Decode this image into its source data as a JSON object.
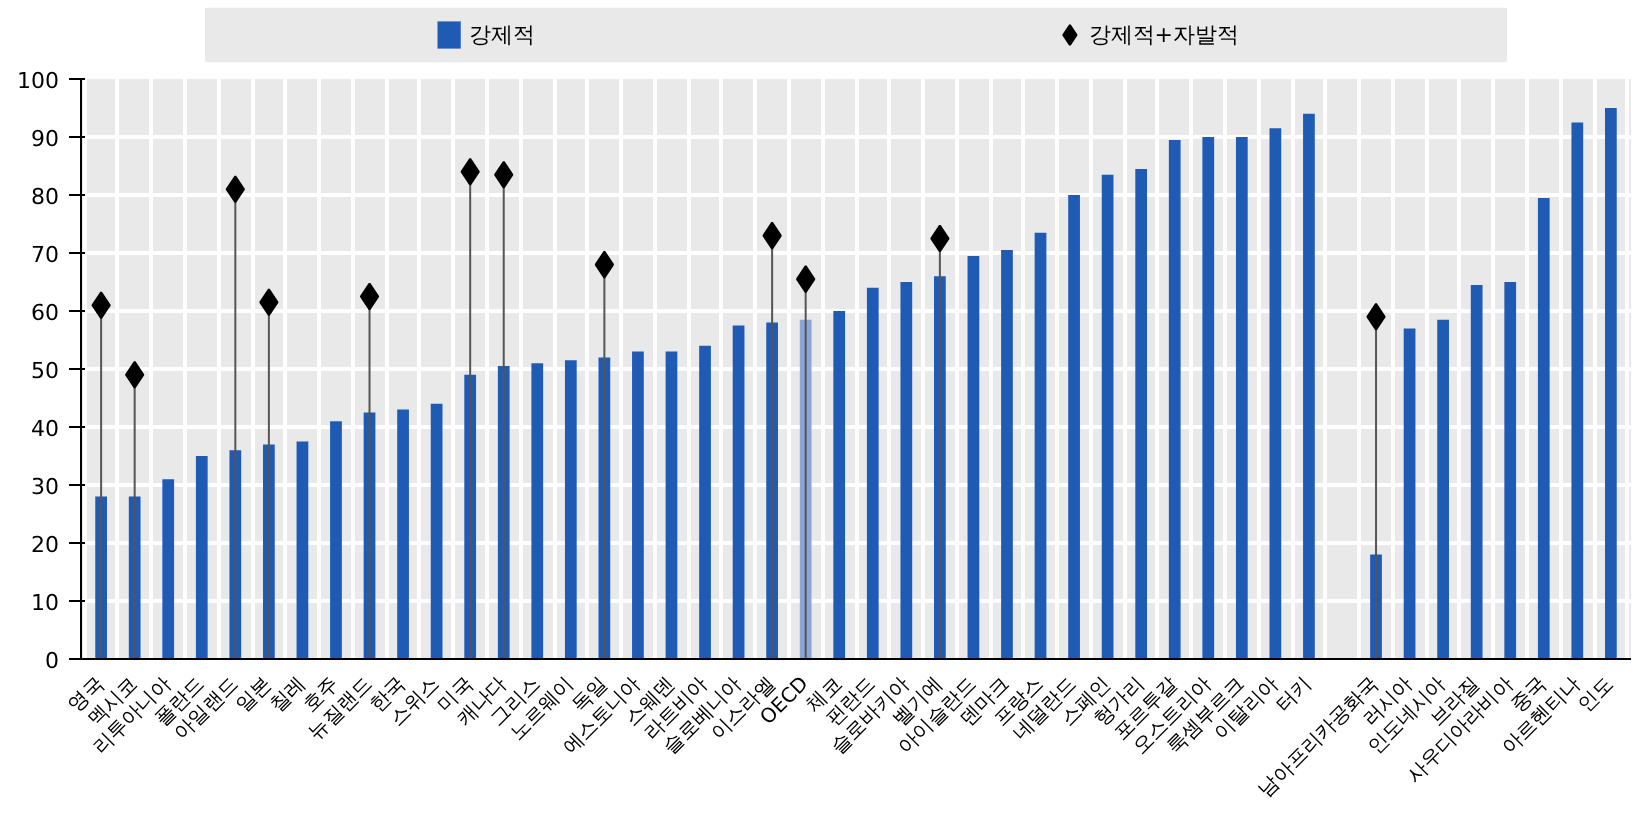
{
  "chart_data": {
    "type": "bar",
    "categories": [
      "영국",
      "멕시코",
      "리투아니아",
      "폴란드",
      "아일랜드",
      "일본",
      "칠레",
      "호주",
      "뉴질랜드",
      "한국",
      "스위스",
      "미국",
      "캐나다",
      "그리스",
      "노르웨이",
      "독일",
      "에스토니아",
      "스웨덴",
      "라트비아",
      "슬로베니아",
      "이스라엘",
      "OECD",
      "체코",
      "핀란드",
      "슬로바키아",
      "벨기에",
      "아이슬란드",
      "덴마크",
      "프랑스",
      "네덜란드",
      "스페인",
      "헝가리",
      "포르투갈",
      "오스트리아",
      "룩셈부르크",
      "이탈리아",
      "터키",
      null,
      "남아프리카공화국",
      "러시아",
      "인도네시아",
      "브라질",
      "사우디아라비아",
      "중국",
      "아르헨티나",
      "인도"
    ],
    "series": [
      {
        "name": "강제적",
        "color": "#1f5bb5",
        "colors": [
          "#1f5bb5",
          "#1f5bb5",
          "#1f5bb5",
          "#1f5bb5",
          "#1f5bb5",
          "#1f5bb5",
          "#1f5bb5",
          "#1f5bb5",
          "#1f5bb5",
          "#1f5bb5",
          "#1f5bb5",
          "#1f5bb5",
          "#1f5bb5",
          "#1f5bb5",
          "#1f5bb5",
          "#1f5bb5",
          "#1f5bb5",
          "#1f5bb5",
          "#1f5bb5",
          "#1f5bb5",
          "#1f5bb5",
          "#8aa6d6",
          "#1f5bb5",
          "#1f5bb5",
          "#1f5bb5",
          "#1f5bb5",
          "#1f5bb5",
          "#1f5bb5",
          "#1f5bb5",
          "#1f5bb5",
          "#1f5bb5",
          "#1f5bb5",
          "#1f5bb5",
          "#1f5bb5",
          "#1f5bb5",
          "#1f5bb5",
          "#1f5bb5",
          "#1f5bb5",
          "#1f5bb5",
          "#1f5bb5",
          "#1f5bb5",
          "#1f5bb5",
          "#1f5bb5",
          "#1f5bb5",
          "#1f5bb5",
          "#1f5bb5"
        ],
        "values": [
          28,
          28,
          31,
          35,
          36,
          37,
          37.5,
          41,
          42.5,
          43,
          44,
          49,
          50.5,
          51,
          51.5,
          52,
          53,
          53,
          54,
          57.5,
          58,
          58.5,
          60,
          64,
          65,
          66,
          69.5,
          70.5,
          73.5,
          80,
          83.5,
          84.5,
          89.5,
          90,
          90,
          91.5,
          94,
          null,
          18,
          57,
          58.5,
          64.5,
          65,
          79.5,
          92.5,
          95
        ]
      },
      {
        "name": "강제적+자발적",
        "type": "lollipop",
        "color": "#000000",
        "marker": "diamond",
        "values": [
          61,
          49,
          null,
          null,
          81,
          61.5,
          null,
          null,
          62.5,
          null,
          null,
          84,
          83.5,
          null,
          null,
          68,
          null,
          null,
          null,
          null,
          73,
          65.5,
          null,
          null,
          null,
          72.5,
          null,
          null,
          null,
          null,
          null,
          null,
          null,
          null,
          null,
          null,
          null,
          null,
          59,
          null,
          null,
          null,
          null,
          null,
          null,
          null
        ]
      }
    ],
    "ylim": [
      0,
      100
    ],
    "yticks": [
      0,
      10,
      20,
      30,
      40,
      50,
      60,
      70,
      80,
      90,
      100
    ],
    "grid": true,
    "legend": "top"
  }
}
